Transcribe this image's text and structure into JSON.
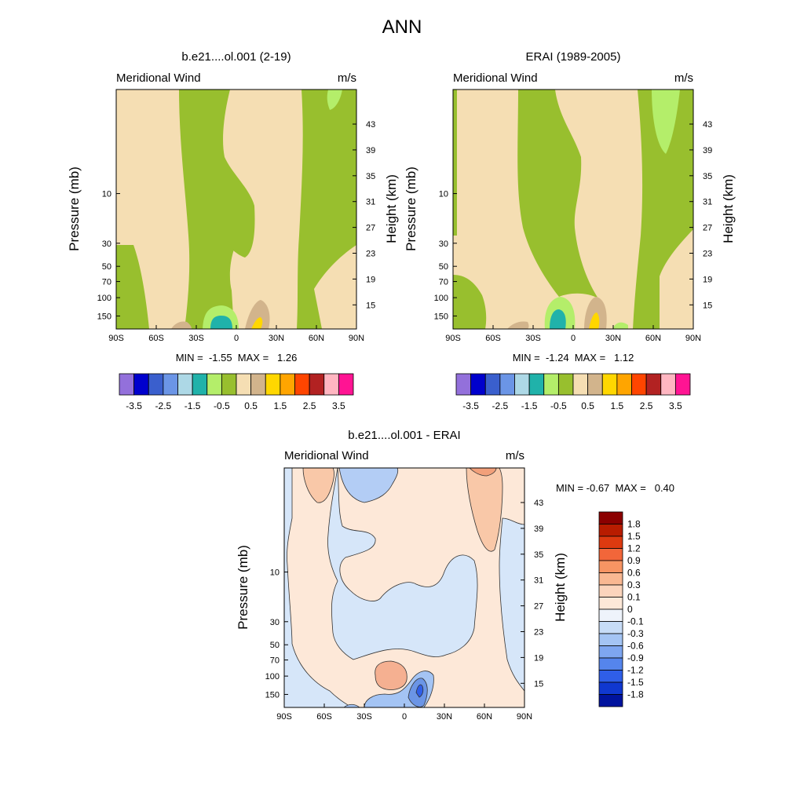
{
  "page": {
    "title": "ANN"
  },
  "chart_data": [
    {
      "type": "heatmap",
      "title": "b.e21....ol.001 (2-19)",
      "subtitle_left": "Meridional Wind",
      "subtitle_right": "m/s",
      "ylabel": "Pressure (mb)",
      "ylabel_right": "Height (km)",
      "x_ticks": [
        "90S",
        "60S",
        "30S",
        "0",
        "30N",
        "60N",
        "90N"
      ],
      "y_ticks": [
        "10",
        "30",
        "50",
        "70",
        "100",
        "150"
      ],
      "y_right_ticks": [
        "43",
        "39",
        "35",
        "31",
        "27",
        "23",
        "19",
        "15"
      ],
      "min_max": "MIN =  -1.55  MAX =   1.26",
      "colorbar_labels": [
        "-3.5",
        "-2.5",
        "-1.5",
        "-0.5",
        "0.5",
        "1.5",
        "2.5",
        "3.5"
      ],
      "colorbar_colors": [
        "#9370db",
        "#0000cd",
        "#3a5fcd",
        "#6b95e6",
        "#add8e6",
        "#20b2aa",
        "#b4ee6a",
        "#98bf2e",
        "#f5deb3",
        "#d2b48c",
        "#ffd700",
        "#ffa500",
        "#ff4500",
        "#b22222",
        "#ffb6c1",
        "#ff1493"
      ]
    },
    {
      "type": "heatmap",
      "title": "ERAI (1989-2005)",
      "subtitle_left": "Meridional Wind",
      "subtitle_right": "m/s",
      "ylabel": "Pressure (mb)",
      "ylabel_right": "Height (km)",
      "x_ticks": [
        "90S",
        "60S",
        "30S",
        "0",
        "30N",
        "60N",
        "90N"
      ],
      "y_ticks": [
        "10",
        "30",
        "50",
        "70",
        "100",
        "150"
      ],
      "y_right_ticks": [
        "43",
        "39",
        "35",
        "31",
        "27",
        "23",
        "19",
        "15"
      ],
      "min_max": "MIN =  -1.24  MAX =   1.12",
      "colorbar_labels": [
        "-3.5",
        "-2.5",
        "-1.5",
        "-0.5",
        "0.5",
        "1.5",
        "2.5",
        "3.5"
      ],
      "colorbar_colors": [
        "#9370db",
        "#0000cd",
        "#3a5fcd",
        "#6b95e6",
        "#add8e6",
        "#20b2aa",
        "#b4ee6a",
        "#98bf2e",
        "#f5deb3",
        "#d2b48c",
        "#ffd700",
        "#ffa500",
        "#ff4500",
        "#b22222",
        "#ffb6c1",
        "#ff1493"
      ]
    },
    {
      "type": "heatmap",
      "title": "b.e21....ol.001 - ERAI",
      "subtitle_left": "Meridional Wind",
      "subtitle_right": "m/s",
      "ylabel": "Pressure (mb)",
      "ylabel_right": "Height (km)",
      "x_ticks": [
        "90S",
        "60S",
        "30S",
        "0",
        "30N",
        "60N",
        "90N"
      ],
      "y_ticks": [
        "10",
        "30",
        "50",
        "70",
        "100",
        "150"
      ],
      "y_right_ticks": [
        "43",
        "39",
        "35",
        "31",
        "27",
        "23",
        "19",
        "15"
      ],
      "min_max": "MIN = -0.67  MAX =   0.40",
      "colorbar_labels": [
        "1.8",
        "1.5",
        "1.2",
        "0.9",
        "0.6",
        "0.3",
        "0.1",
        "0",
        "-0.1",
        "-0.3",
        "-0.6",
        "-0.9",
        "-1.2",
        "-1.5",
        "-1.8"
      ],
      "colorbar_colors": [
        "#8b0000",
        "#b81c00",
        "#dd3a10",
        "#f2663a",
        "#f79463",
        "#f9b892",
        "#fbd4bc",
        "#fde8d8",
        "#eef3fb",
        "#c7dcf7",
        "#a4c4f4",
        "#7ea6f0",
        "#5585ec",
        "#2f5ee8",
        "#1038d0",
        "#00139e"
      ]
    }
  ]
}
